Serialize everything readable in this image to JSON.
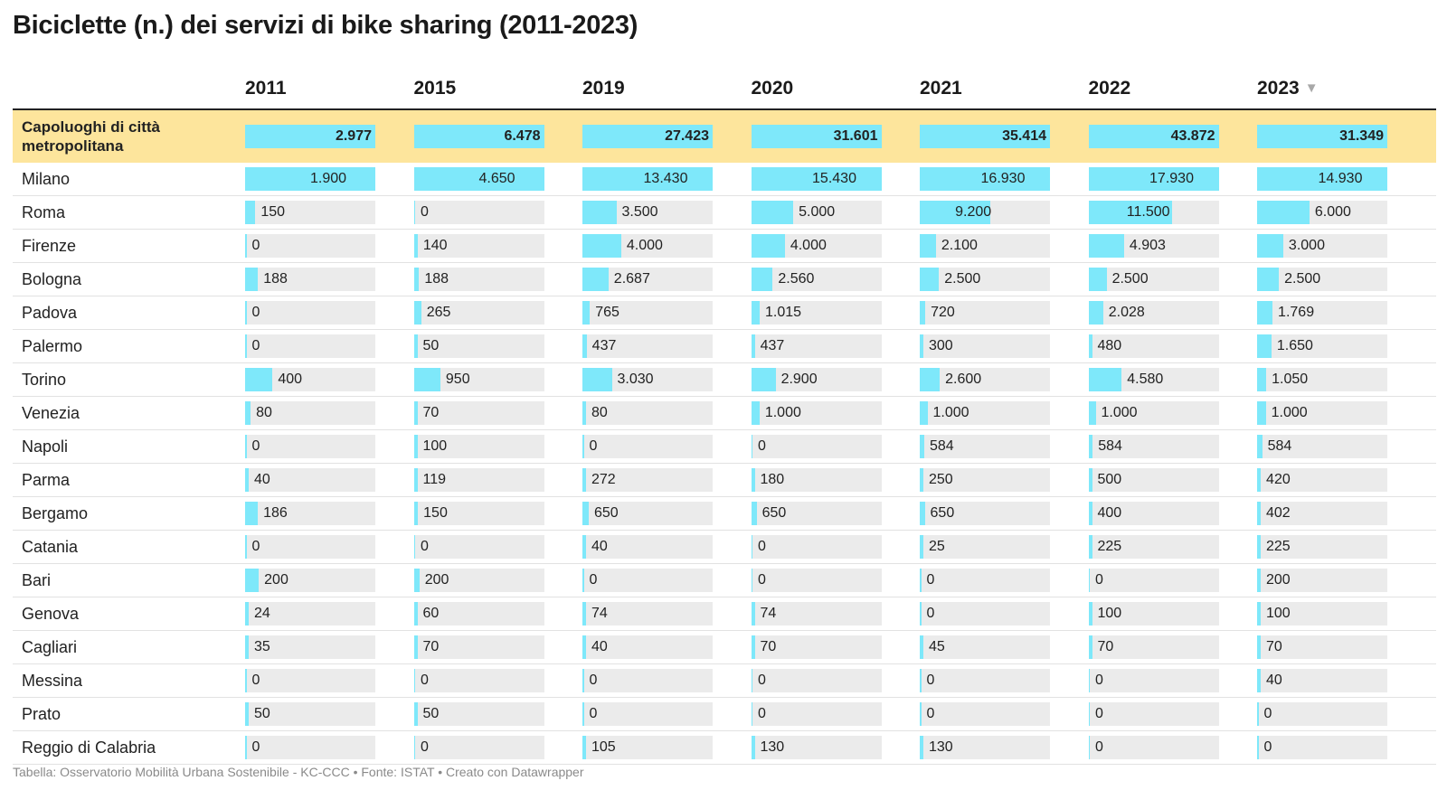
{
  "title": "Biciclette (n.) dei servizi di bike sharing (2011-2023)",
  "footer": "Tabella: Osservatorio Mobilità Urbana Sostenibile - KC-CCC • Fonte: ISTAT • Creato con Datawrapper",
  "colors": {
    "bar": "#7ee8fa",
    "track": "#ebebeb",
    "highlight_row": "#fde59c"
  },
  "sort_icon": "triangle-down-icon",
  "chart_data": {
    "type": "table",
    "columns": [
      "2011",
      "2015",
      "2019",
      "2020",
      "2021",
      "2022",
      "2023"
    ],
    "sorted_column": "2023",
    "rows": [
      {
        "label": "Capoluoghi di città metropolitana",
        "highlight": true,
        "values": [
          2977,
          6478,
          27423,
          31601,
          35414,
          43872,
          31349
        ],
        "labels": [
          "2.977",
          "6.478",
          "27.423",
          "31.601",
          "35.414",
          "43.872",
          "31.349"
        ]
      },
      {
        "label": "Milano",
        "values": [
          1900,
          4650,
          13430,
          15430,
          16930,
          17930,
          14930
        ],
        "labels": [
          "1.900",
          "4.650",
          "13.430",
          "15.430",
          "16.930",
          "17.930",
          "14.930"
        ]
      },
      {
        "label": "Roma",
        "values": [
          150,
          0,
          3500,
          5000,
          9200,
          11500,
          6000
        ],
        "labels": [
          "150",
          "0",
          "3.500",
          "5.000",
          "9.200",
          "11.500",
          "6.000"
        ]
      },
      {
        "label": "Firenze",
        "values": [
          0,
          140,
          4000,
          4000,
          2100,
          4903,
          3000
        ],
        "labels": [
          "0",
          "140",
          "4.000",
          "4.000",
          "2.100",
          "4.903",
          "3.000"
        ]
      },
      {
        "label": "Bologna",
        "values": [
          188,
          188,
          2687,
          2560,
          2500,
          2500,
          2500
        ],
        "labels": [
          "188",
          "188",
          "2.687",
          "2.560",
          "2.500",
          "2.500",
          "2.500"
        ]
      },
      {
        "label": "Padova",
        "values": [
          0,
          265,
          765,
          1015,
          720,
          2028,
          1769
        ],
        "labels": [
          "0",
          "265",
          "765",
          "1.015",
          "720",
          "2.028",
          "1.769"
        ]
      },
      {
        "label": "Palermo",
        "values": [
          0,
          50,
          437,
          437,
          300,
          480,
          1650
        ],
        "labels": [
          "0",
          "50",
          "437",
          "437",
          "300",
          "480",
          "1.650"
        ]
      },
      {
        "label": "Torino",
        "values": [
          400,
          950,
          3030,
          2900,
          2600,
          4580,
          1050
        ],
        "labels": [
          "400",
          "950",
          "3.030",
          "2.900",
          "2.600",
          "4.580",
          "1.050"
        ]
      },
      {
        "label": "Venezia",
        "values": [
          80,
          70,
          80,
          1000,
          1000,
          1000,
          1000
        ],
        "labels": [
          "80",
          "70",
          "80",
          "1.000",
          "1.000",
          "1.000",
          "1.000"
        ]
      },
      {
        "label": "Napoli",
        "values": [
          0,
          100,
          0,
          0,
          584,
          584,
          584
        ],
        "labels": [
          "0",
          "100",
          "0",
          "0",
          "584",
          "584",
          "584"
        ]
      },
      {
        "label": "Parma",
        "values": [
          40,
          119,
          272,
          180,
          250,
          500,
          420
        ],
        "labels": [
          "40",
          "119",
          "272",
          "180",
          "250",
          "500",
          "420"
        ]
      },
      {
        "label": "Bergamo",
        "values": [
          186,
          150,
          650,
          650,
          650,
          400,
          402
        ],
        "labels": [
          "186",
          "150",
          "650",
          "650",
          "650",
          "400",
          "402"
        ]
      },
      {
        "label": "Catania",
        "values": [
          0,
          0,
          40,
          0,
          25,
          225,
          225
        ],
        "labels": [
          "0",
          "0",
          "40",
          "0",
          "25",
          "225",
          "225"
        ]
      },
      {
        "label": "Bari",
        "values": [
          200,
          200,
          0,
          0,
          0,
          0,
          200
        ],
        "labels": [
          "200",
          "200",
          "0",
          "0",
          "0",
          "0",
          "200"
        ]
      },
      {
        "label": "Genova",
        "values": [
          24,
          60,
          74,
          74,
          0,
          100,
          100
        ],
        "labels": [
          "24",
          "60",
          "74",
          "74",
          "0",
          "100",
          "100"
        ]
      },
      {
        "label": "Cagliari",
        "values": [
          35,
          70,
          40,
          70,
          45,
          70,
          70
        ],
        "labels": [
          "35",
          "70",
          "40",
          "70",
          "45",
          "70",
          "70"
        ]
      },
      {
        "label": "Messina",
        "values": [
          0,
          0,
          0,
          0,
          0,
          0,
          40
        ],
        "labels": [
          "0",
          "0",
          "0",
          "0",
          "0",
          "0",
          "40"
        ]
      },
      {
        "label": "Prato",
        "values": [
          50,
          50,
          0,
          0,
          0,
          0,
          0
        ],
        "labels": [
          "50",
          "50",
          "0",
          "0",
          "0",
          "0",
          "0"
        ]
      },
      {
        "label": "Reggio di Calabria",
        "values": [
          0,
          0,
          105,
          130,
          130,
          0,
          0
        ],
        "labels": [
          "0",
          "0",
          "105",
          "130",
          "130",
          "0",
          "0"
        ]
      }
    ]
  }
}
